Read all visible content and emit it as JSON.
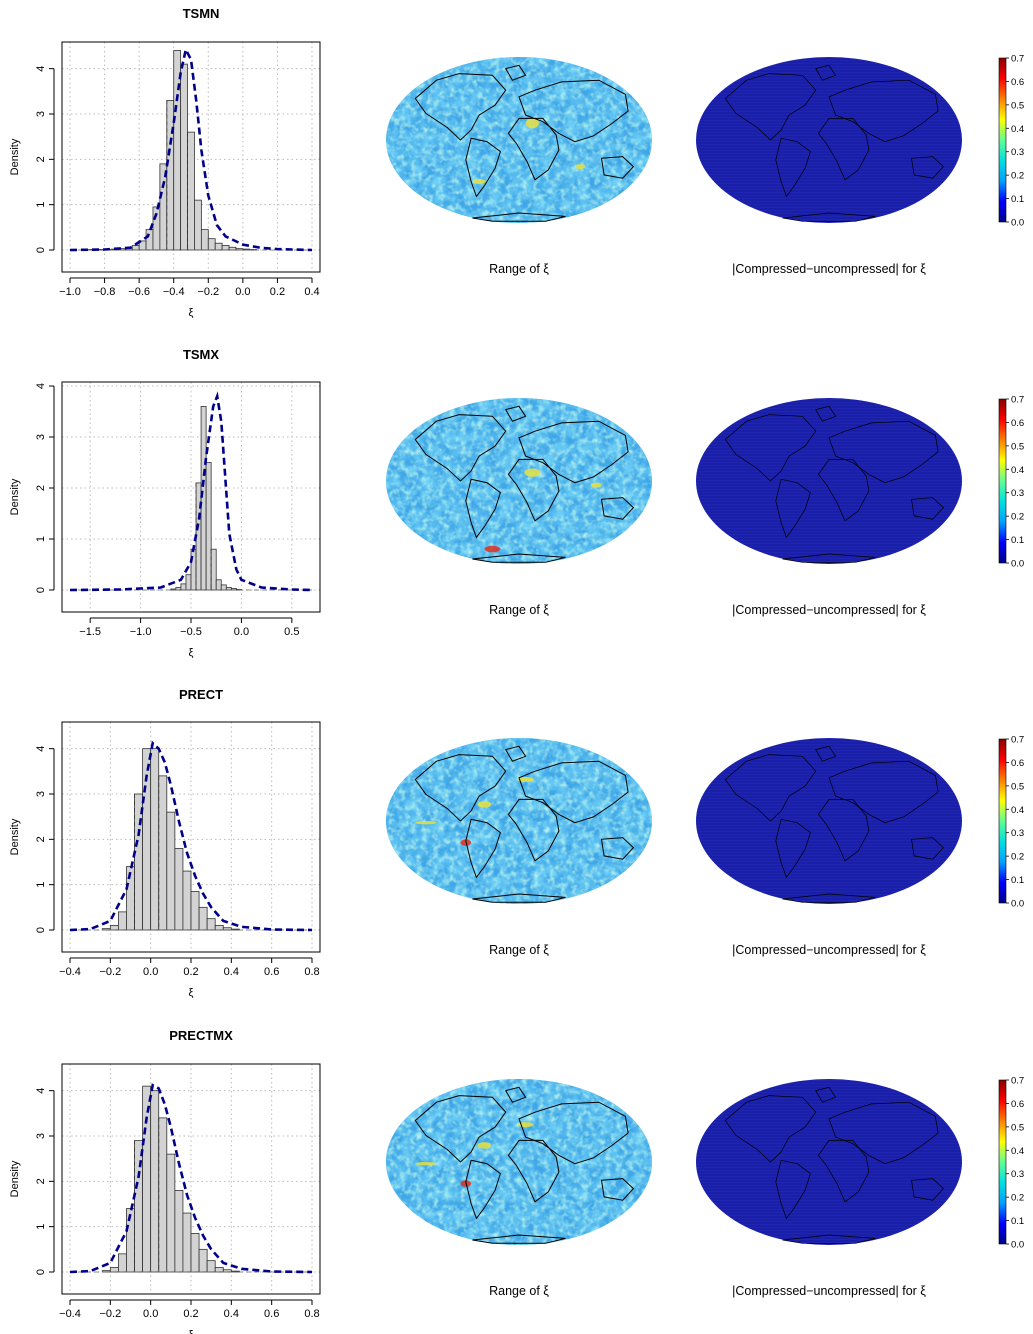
{
  "map_caption_range": "Range of ξ",
  "map_caption_diff": "|Compressed−uncompressed| for ξ",
  "colorbar": {
    "ticks": [
      0.0,
      0.1,
      0.2,
      0.3,
      0.4,
      0.5,
      0.6,
      0.7
    ],
    "tick_labels": [
      "0.0",
      "0.1",
      "0.2",
      "0.3",
      "0.4",
      "0.5",
      "0.6",
      "0.7"
    ],
    "colors": [
      "#00008b",
      "#0000ff",
      "#00a0ff",
      "#00e0e0",
      "#60ff90",
      "#ffff00",
      "#ff8000",
      "#ff0000",
      "#8b0000"
    ]
  },
  "map_colors": {
    "ocean_range": "#3fa7e8",
    "speckle_low": "#2a7fe0",
    "speckle_high": "#6fe0d8",
    "hot_yellow": "#e8e040",
    "hot_red": "#e03020",
    "diff_fill": "#1a1fa8",
    "coast": "#000000"
  },
  "chart_data": [
    {
      "type": "histogram",
      "title": "TSMN",
      "xlabel": "ξ",
      "ylabel": "Density",
      "xlim": [
        -1.0,
        0.4
      ],
      "ylim": [
        0,
        4.5
      ],
      "xticks": [
        -1.0,
        -0.8,
        -0.6,
        -0.4,
        -0.2,
        0.0,
        0.2,
        0.4
      ],
      "xtick_labels": [
        "−1.0",
        "−0.8",
        "−0.6",
        "−0.4",
        "−0.2",
        "0.0",
        "0.2",
        "0.4"
      ],
      "yticks": [
        0,
        1,
        2,
        3,
        4
      ],
      "ytick_labels": [
        "0",
        "1",
        "2",
        "3",
        "4"
      ],
      "grid": true,
      "bin_width": 0.04,
      "bins_start": -0.92,
      "densities": [
        0.01,
        0.01,
        0.01,
        0.01,
        0.02,
        0.03,
        0.06,
        0.1,
        0.2,
        0.45,
        0.95,
        1.9,
        3.3,
        4.4,
        4.1,
        2.6,
        1.1,
        0.45,
        0.25,
        0.15,
        0.1,
        0.06,
        0.03,
        0.02,
        0.01
      ],
      "density_curve": [
        [
          -1.0,
          0.0
        ],
        [
          -0.8,
          0.01
        ],
        [
          -0.65,
          0.05
        ],
        [
          -0.55,
          0.3
        ],
        [
          -0.5,
          0.8
        ],
        [
          -0.45,
          1.6
        ],
        [
          -0.4,
          2.8
        ],
        [
          -0.36,
          3.9
        ],
        [
          -0.33,
          4.42
        ],
        [
          -0.3,
          4.2
        ],
        [
          -0.27,
          3.3
        ],
        [
          -0.24,
          2.2
        ],
        [
          -0.2,
          1.2
        ],
        [
          -0.15,
          0.55
        ],
        [
          -0.1,
          0.3
        ],
        [
          0.0,
          0.12
        ],
        [
          0.1,
          0.05
        ],
        [
          0.2,
          0.02
        ],
        [
          0.4,
          0.0
        ]
      ]
    },
    {
      "type": "histogram",
      "title": "TSMX",
      "xlabel": "ξ",
      "ylabel": "Density",
      "xlim": [
        -1.7,
        0.7
      ],
      "ylim": [
        0,
        4.0
      ],
      "xticks": [
        -1.5,
        -1.0,
        -0.5,
        0.0,
        0.5
      ],
      "xtick_labels": [
        "−1.5",
        "−1.0",
        "−0.5",
        "0.0",
        "0.5"
      ],
      "yticks": [
        0,
        1,
        2,
        3,
        4
      ],
      "ytick_labels": [
        "0",
        "1",
        "2",
        "3",
        "4"
      ],
      "grid": true,
      "bin_width": 0.05,
      "bins_start": -0.7,
      "densities": [
        0.02,
        0.05,
        0.12,
        0.3,
        0.8,
        2.1,
        3.6,
        2.5,
        0.8,
        0.2,
        0.1,
        0.05,
        0.03,
        0.01
      ],
      "density_curve": [
        [
          -1.7,
          0.0
        ],
        [
          -1.2,
          0.01
        ],
        [
          -0.8,
          0.05
        ],
        [
          -0.6,
          0.2
        ],
        [
          -0.5,
          0.55
        ],
        [
          -0.42,
          1.4
        ],
        [
          -0.35,
          2.6
        ],
        [
          -0.28,
          3.6
        ],
        [
          -0.24,
          3.8
        ],
        [
          -0.2,
          3.3
        ],
        [
          -0.16,
          2.2
        ],
        [
          -0.12,
          1.1
        ],
        [
          -0.05,
          0.4
        ],
        [
          0.0,
          0.2
        ],
        [
          0.2,
          0.05
        ],
        [
          0.5,
          0.01
        ],
        [
          0.7,
          0.0
        ]
      ]
    },
    {
      "type": "histogram",
      "title": "PRECT",
      "xlabel": "ξ",
      "ylabel": "Density",
      "xlim": [
        -0.4,
        0.8
      ],
      "ylim": [
        0,
        4.5
      ],
      "xticks": [
        -0.4,
        -0.2,
        0.0,
        0.2,
        0.4,
        0.6,
        0.8
      ],
      "xtick_labels": [
        "−0.4",
        "−0.2",
        "0.0",
        "0.2",
        "0.4",
        "0.6",
        "0.8"
      ],
      "yticks": [
        0,
        1,
        2,
        3,
        4
      ],
      "ytick_labels": [
        "0",
        "1",
        "2",
        "3",
        "4"
      ],
      "grid": true,
      "bin_width": 0.04,
      "bins_start": -0.24,
      "densities": [
        0.03,
        0.1,
        0.4,
        1.4,
        3.0,
        4.0,
        4.0,
        3.4,
        2.6,
        1.8,
        1.3,
        0.85,
        0.5,
        0.25,
        0.1,
        0.05,
        0.02
      ],
      "density_curve": [
        [
          -0.4,
          0.0
        ],
        [
          -0.3,
          0.02
        ],
        [
          -0.2,
          0.2
        ],
        [
          -0.12,
          0.9
        ],
        [
          -0.06,
          2.1
        ],
        [
          -0.02,
          3.4
        ],
        [
          0.01,
          4.12
        ],
        [
          0.04,
          4.0
        ],
        [
          0.07,
          3.7
        ],
        [
          0.1,
          3.2
        ],
        [
          0.14,
          2.4
        ],
        [
          0.18,
          1.7
        ],
        [
          0.22,
          1.2
        ],
        [
          0.26,
          0.8
        ],
        [
          0.3,
          0.5
        ],
        [
          0.36,
          0.2
        ],
        [
          0.45,
          0.07
        ],
        [
          0.6,
          0.01
        ],
        [
          0.8,
          0.0
        ]
      ]
    },
    {
      "type": "histogram",
      "title": "PRECTMX",
      "xlabel": "ξ",
      "ylabel": "Density",
      "xlim": [
        -0.4,
        0.8
      ],
      "ylim": [
        0,
        4.5
      ],
      "xticks": [
        -0.4,
        -0.2,
        0.0,
        0.2,
        0.4,
        0.6,
        0.8
      ],
      "xtick_labels": [
        "−0.4",
        "−0.2",
        "0.0",
        "0.2",
        "0.4",
        "0.6",
        "0.8"
      ],
      "yticks": [
        0,
        1,
        2,
        3,
        4
      ],
      "ytick_labels": [
        "0",
        "1",
        "2",
        "3",
        "4"
      ],
      "grid": true,
      "bin_width": 0.04,
      "bins_start": -0.24,
      "densities": [
        0.03,
        0.1,
        0.4,
        1.4,
        2.9,
        4.1,
        4.0,
        3.4,
        2.6,
        1.8,
        1.3,
        0.85,
        0.5,
        0.25,
        0.1,
        0.05,
        0.02
      ],
      "density_curve": [
        [
          -0.4,
          0.0
        ],
        [
          -0.3,
          0.02
        ],
        [
          -0.2,
          0.2
        ],
        [
          -0.12,
          0.9
        ],
        [
          -0.06,
          2.1
        ],
        [
          -0.02,
          3.4
        ],
        [
          0.01,
          4.12
        ],
        [
          0.04,
          4.05
        ],
        [
          0.07,
          3.7
        ],
        [
          0.1,
          3.2
        ],
        [
          0.14,
          2.4
        ],
        [
          0.18,
          1.7
        ],
        [
          0.22,
          1.2
        ],
        [
          0.26,
          0.8
        ],
        [
          0.3,
          0.5
        ],
        [
          0.36,
          0.2
        ],
        [
          0.45,
          0.07
        ],
        [
          0.6,
          0.01
        ],
        [
          0.8,
          0.0
        ]
      ]
    }
  ]
}
